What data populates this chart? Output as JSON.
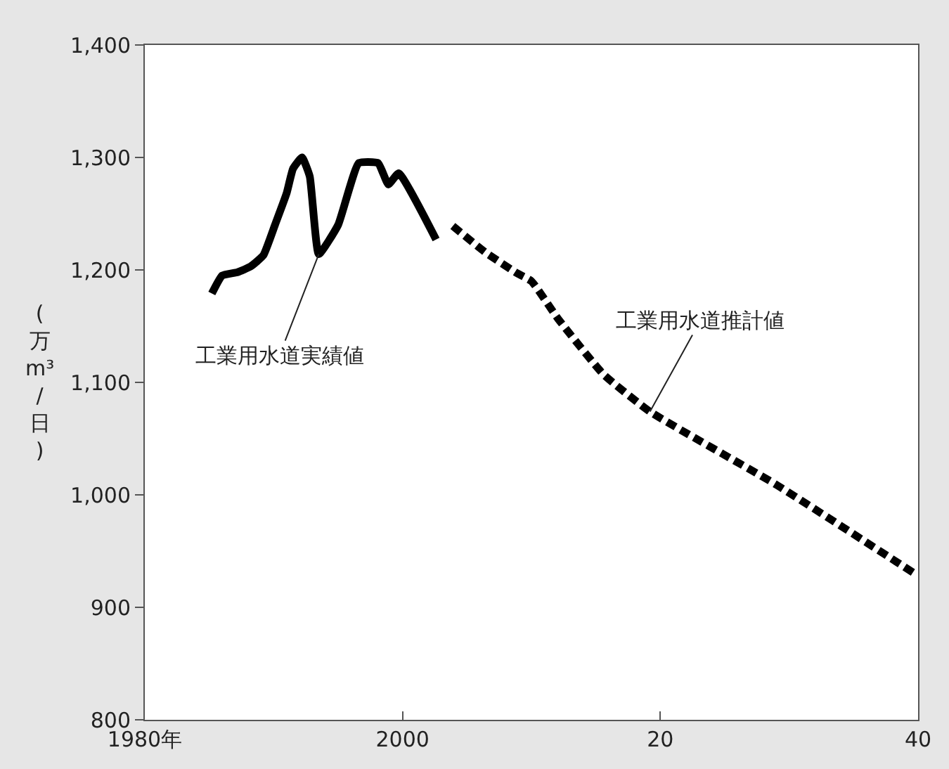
{
  "chart_data": {
    "type": "line",
    "ylabel": "(万m³/日)",
    "xlim": [
      1980,
      2040
    ],
    "xticks": [
      {
        "value": 1980,
        "label": "1980年"
      },
      2000,
      {
        "value": 2020,
        "label": "20"
      },
      {
        "value": 2040,
        "label": "40"
      }
    ],
    "ylim": [
      800,
      1400
    ],
    "yticks": [
      {
        "value": 800,
        "label": "800"
      },
      {
        "value": 900,
        "label": "900"
      },
      {
        "value": 1000,
        "label": "1,000"
      },
      {
        "value": 1100,
        "label": "1,100"
      },
      {
        "value": 1200,
        "label": "1,200"
      },
      {
        "value": 1300,
        "label": "1,300"
      },
      {
        "value": 1400,
        "label": "1,400"
      }
    ],
    "series": [
      {
        "color": "#000000",
        "line_style": "solid",
        "x": [
          1985.2,
          1986.0,
          1987.2,
          1988.2,
          1989.2,
          1990.1,
          1991.0,
          1991.5,
          1992.2,
          1992.8,
          1993.5,
          1995.0,
          1996.6,
          1998.1,
          1998.9,
          1999.7,
          2002.6
        ],
        "values": [
          1179,
          1195,
          1198,
          1203,
          1213,
          1240,
          1268,
          1290,
          1300,
          1283,
          1214,
          1240,
          1295,
          1295,
          1276,
          1286,
          1227
        ]
      },
      {
        "color": "#000000",
        "line_style": "dashed",
        "x": [
          2003.9,
          2006.5,
          2008.9,
          2010.0,
          2012.1,
          2015.6,
          2019.2,
          2029.0,
          2039.6
        ],
        "values": [
          1239,
          1215,
          1197,
          1190,
          1156,
          1107,
          1074,
          1009,
          931
        ]
      }
    ],
    "annotations": [
      {
        "text": "工業用水道実績値",
        "x": 1993.5,
        "y": 1214
      },
      {
        "text": "工業用水道推計値",
        "x": 2019.2,
        "y": 1074
      }
    ]
  }
}
